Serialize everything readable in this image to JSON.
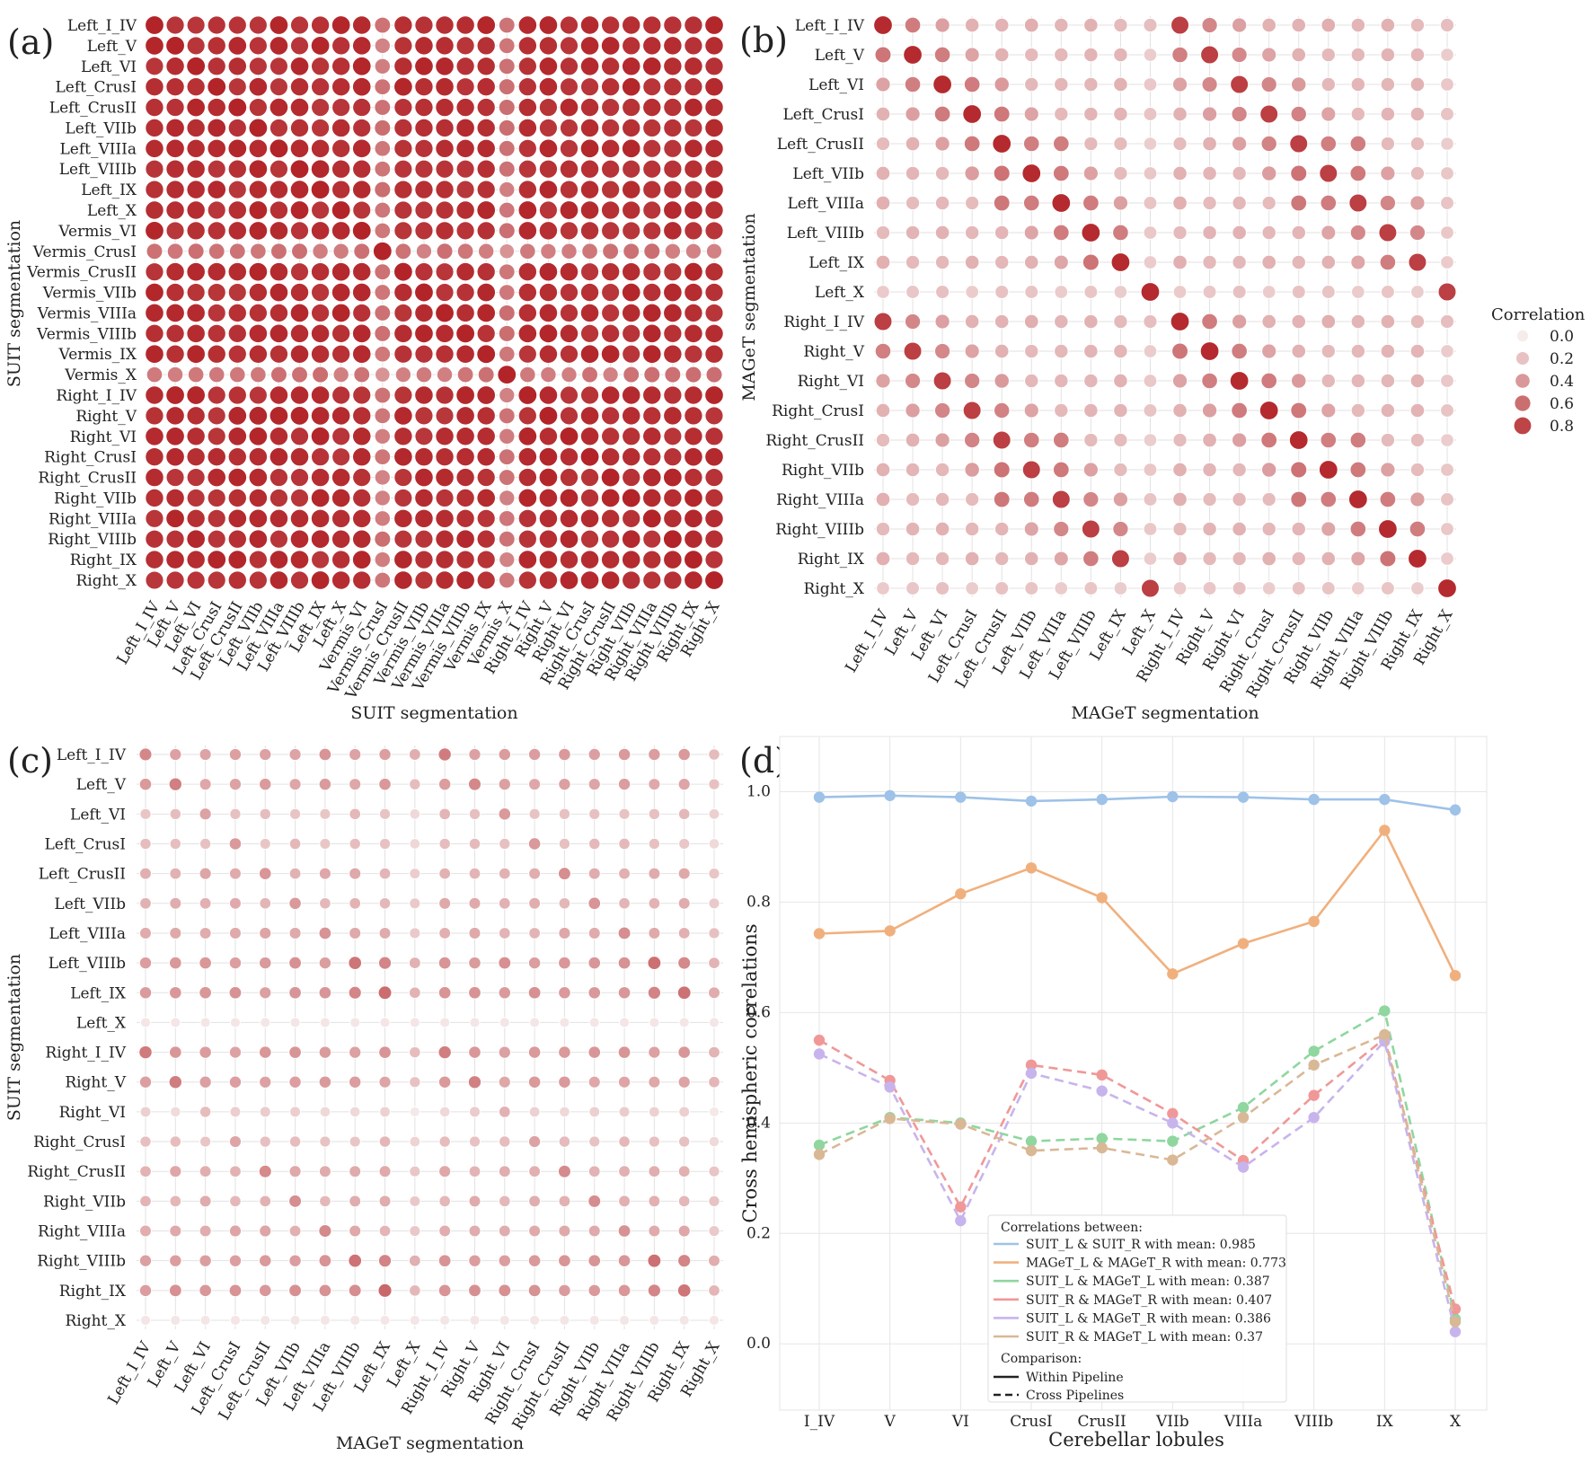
{
  "chart_data": [
    {
      "panel": "(a)",
      "type": "heatmap",
      "xlabel": "SUIT segmentation",
      "ylabel": "SUIT segmentation",
      "labels": [
        "Left_I_IV",
        "Left_V",
        "Left_VI",
        "Left_CrusI",
        "Left_CrusII",
        "Left_VIIb",
        "Left_VIIIa",
        "Left_VIIIb",
        "Left_IX",
        "Left_X",
        "Vermis_VI",
        "Vermis_CrusI",
        "Vermis_CrusII",
        "Vermis_VIIb",
        "Vermis_VIIIa",
        "Vermis_VIIIb",
        "Vermis_IX",
        "Vermis_X",
        "Right_I_IV",
        "Right_V",
        "Right_VI",
        "Right_CrusI",
        "Right_CrusII",
        "Right_VIIb",
        "Right_VIIIa",
        "Right_VIIIb",
        "Right_IX",
        "Right_X"
      ],
      "pattern": "high correlations (about 0.8-1.0) almost everywhere; Vermis_CrusI and Vermis_X rows and columns lower (about 0.4-0.6)"
    },
    {
      "panel": "(b)",
      "type": "heatmap",
      "xlabel": "MAGeT segmentation",
      "ylabel": "MAGeT segmentation",
      "labels": [
        "Left_I_IV",
        "Left_V",
        "Left_VI",
        "Left_CrusI",
        "Left_CrusII",
        "Left_VIIb",
        "Left_VIIIa",
        "Left_VIIIb",
        "Left_IX",
        "Left_X",
        "Right_I_IV",
        "Right_V",
        "Right_VI",
        "Right_CrusI",
        "Right_CrusII",
        "Right_VIIb",
        "Right_VIIIa",
        "Right_VIIIb",
        "Right_IX",
        "Right_X"
      ],
      "legend": {
        "title": "Correlation",
        "levels": [
          "0.0",
          "0.2",
          "0.4",
          "0.6",
          "0.8"
        ]
      },
      "pattern": "diagonal and homologous left/right pairs high (about 0.7-0.9); neighbouring lobules moderate; rest about 0.2-0.4"
    },
    {
      "panel": "(c)",
      "type": "heatmap",
      "xlabel": "MAGeT segmentation",
      "ylabel": "SUIT segmentation",
      "xlabels": [
        "Left_I_IV",
        "Left_V",
        "Left_VI",
        "Left_CrusI",
        "Left_CrusII",
        "Left_VIIb",
        "Left_VIIIa",
        "Left_VIIIb",
        "Left_IX",
        "Left_X",
        "Right_I_IV",
        "Right_V",
        "Right_VI",
        "Right_CrusI",
        "Right_CrusII",
        "Right_VIIb",
        "Right_VIIIa",
        "Right_VIIIb",
        "Right_IX",
        "Right_X"
      ],
      "ylabels": [
        "Left_I_IV",
        "Left_V",
        "Left_VI",
        "Left_CrusI",
        "Left_CrusII",
        "Left_VIIb",
        "Left_VIIIa",
        "Left_VIIIb",
        "Left_IX",
        "Left_X",
        "Right_I_IV",
        "Right_V",
        "Right_VI",
        "Right_CrusI",
        "Right_CrusII",
        "Right_VIIb",
        "Right_VIIIa",
        "Right_VIIIb",
        "Right_IX",
        "Right_X"
      ],
      "pattern": "weak to moderate correlations (about 0.1-0.5); Left_X and Right_X rows near 0"
    },
    {
      "panel": "(d)",
      "type": "line",
      "xlabel": "Cerebellar lobules",
      "ylabel": "Cross hemispheric correlations",
      "categories": [
        "I_IV",
        "V",
        "VI",
        "CrusI",
        "CrusII",
        "VIIb",
        "VIIIa",
        "VIIIb",
        "IX",
        "X"
      ],
      "ylim": [
        -0.12,
        1.1
      ],
      "yticks": [
        "0.0",
        "0.2",
        "0.4",
        "0.6",
        "0.8",
        "1.0"
      ],
      "series": [
        {
          "name": "SUIT_L & SUIT_R with mean: 0.985",
          "style": "solid",
          "color": "#9ec2e8",
          "values": [
            0.99,
            0.993,
            0.99,
            0.983,
            0.986,
            0.991,
            0.99,
            0.986,
            0.986,
            0.967
          ]
        },
        {
          "name": "MAGeT_L & MAGeT_R with mean: 0.773",
          "style": "solid",
          "color": "#f0b07e",
          "values": [
            0.743,
            0.748,
            0.815,
            0.862,
            0.808,
            0.67,
            0.725,
            0.765,
            0.93,
            0.667
          ]
        },
        {
          "name": "SUIT_L & MAGeT_L with mean: 0.387",
          "style": "dashed",
          "color": "#8fd69f",
          "values": [
            0.36,
            0.41,
            0.4,
            0.367,
            0.372,
            0.367,
            0.428,
            0.53,
            0.603,
            0.045
          ]
        },
        {
          "name": "SUIT_R & MAGeT_R with mean: 0.407",
          "style": "dashed",
          "color": "#f09898",
          "values": [
            0.55,
            0.477,
            0.248,
            0.505,
            0.487,
            0.417,
            0.332,
            0.45,
            0.553,
            0.063
          ]
        },
        {
          "name": "SUIT_L & MAGeT_R with mean: 0.386",
          "style": "dashed",
          "color": "#c8b4ec",
          "values": [
            0.525,
            0.465,
            0.223,
            0.49,
            0.458,
            0.4,
            0.32,
            0.41,
            0.548,
            0.022
          ]
        },
        {
          "name": "SUIT_R & MAGeT_L with mean: 0.37",
          "style": "dashed",
          "color": "#d9b896",
          "values": [
            0.343,
            0.408,
            0.398,
            0.35,
            0.355,
            0.333,
            0.41,
            0.505,
            0.56,
            0.04
          ]
        }
      ],
      "legend": {
        "title": "Correlations between:",
        "comparison_title": "Comparison:",
        "within": "Within Pipeline",
        "cross": "Cross Pipelines"
      }
    }
  ]
}
